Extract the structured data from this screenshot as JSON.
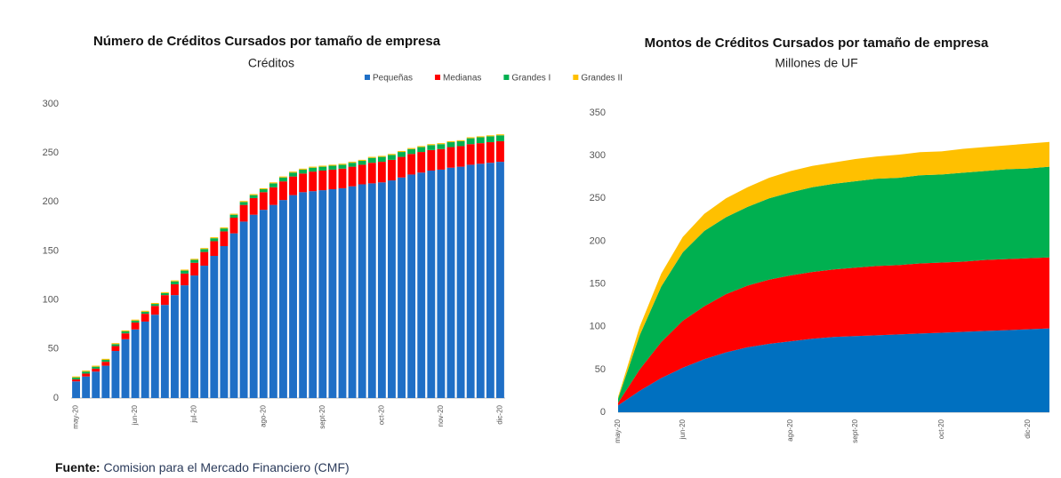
{
  "chart_data": [
    {
      "type": "bar",
      "title": "Número de Créditos Cursados por tamaño de empresa",
      "subtitle": "Créditos",
      "categories": [
        "may-20",
        null,
        null,
        null,
        null,
        null,
        "jun-20",
        null,
        null,
        null,
        null,
        null,
        "jul-20",
        null,
        null,
        null,
        null,
        null,
        null,
        "ago-20",
        null,
        null,
        null,
        null,
        null,
        "sept-20",
        null,
        null,
        null,
        null,
        null,
        "oct-20",
        null,
        null,
        null,
        null,
        null,
        "nov-20",
        null,
        null,
        null,
        null,
        null,
        "dic-20"
      ],
      "series": [
        {
          "name": "Pequeñas",
          "color": "#1f6fc6",
          "values": [
            17,
            22,
            27,
            33,
            48,
            60,
            70,
            78,
            85,
            95,
            105,
            115,
            125,
            135,
            145,
            155,
            168,
            180,
            187,
            192,
            197,
            202,
            207,
            210,
            211,
            212,
            213,
            214,
            216,
            218,
            219,
            220,
            222,
            225,
            228,
            230,
            232,
            233,
            235,
            236,
            238,
            239,
            240,
            241
          ]
        },
        {
          "name": "Medianas",
          "color": "#ff0000",
          "values": [
            2,
            3,
            3,
            4,
            5,
            6,
            7,
            8,
            9,
            10,
            11,
            12,
            13,
            14,
            15,
            15,
            16,
            17,
            17,
            18,
            18,
            19,
            19,
            19,
            20,
            20,
            20,
            20,
            20,
            20,
            21,
            21,
            21,
            21,
            21,
            21,
            21,
            21,
            21,
            21,
            21,
            21,
            21,
            21
          ]
        },
        {
          "name": "Grandes I",
          "color": "#00b050",
          "values": [
            2,
            2,
            2,
            2,
            2,
            2,
            2,
            2,
            2,
            2,
            3,
            3,
            3,
            3,
            3,
            3,
            3,
            3,
            3,
            3,
            4,
            4,
            4,
            4,
            4,
            4,
            4,
            4,
            4,
            4,
            5,
            5,
            5,
            5,
            5,
            5,
            5,
            5,
            5,
            5,
            6,
            6,
            6,
            6
          ]
        },
        {
          "name": "Grandes II",
          "color": "#ffc000",
          "values": [
            1,
            1,
            1,
            1,
            1,
            1,
            1,
            1,
            1,
            1,
            1,
            1,
            1,
            1,
            1,
            1,
            1,
            1,
            1,
            1,
            1,
            1,
            1,
            1,
            1,
            1,
            1,
            1,
            1,
            1,
            1,
            1,
            1,
            1,
            1,
            1,
            1,
            1,
            1,
            1,
            1,
            1,
            1,
            1
          ]
        }
      ],
      "ylim": [
        0,
        300
      ],
      "yticks": [
        0,
        50,
        100,
        150,
        200,
        250,
        300
      ],
      "stacked": true
    },
    {
      "type": "area",
      "title": "Montos de Créditos Cursados por tamaño de empresa",
      "subtitle": "Millones de UF",
      "categories": [
        "may-20",
        null,
        null,
        "jun-20",
        null,
        null,
        null,
        null,
        "ago-20",
        null,
        null,
        "sept-20",
        null,
        null,
        null,
        "oct-20",
        null,
        null,
        null,
        "dic-20",
        null
      ],
      "series": [
        {
          "color": "#0070c0",
          "values": [
            8,
            25,
            40,
            52,
            62,
            70,
            76,
            80,
            83,
            86,
            88,
            89,
            90,
            91,
            92,
            93,
            94,
            95,
            96,
            97,
            98
          ]
        },
        {
          "color": "#ff0000",
          "values": [
            3,
            25,
            42,
            55,
            62,
            68,
            72,
            75,
            77,
            78,
            79,
            80,
            81,
            81,
            82,
            82,
            82,
            83,
            83,
            83,
            83
          ]
        },
        {
          "color": "#00b050",
          "values": [
            5,
            40,
            65,
            80,
            88,
            90,
            92,
            95,
            97,
            99,
            100,
            101,
            102,
            102,
            103,
            103,
            104,
            104,
            105,
            105,
            106
          ]
        },
        {
          "color": "#ffc000",
          "values": [
            2,
            10,
            15,
            18,
            20,
            22,
            23,
            24,
            25,
            25,
            25,
            26,
            26,
            27,
            27,
            27,
            28,
            28,
            28,
            29,
            29
          ]
        }
      ],
      "ylim": [
        0,
        350
      ],
      "yticks": [
        0,
        50,
        100,
        150,
        200,
        250,
        300,
        350
      ],
      "stacked": true
    }
  ],
  "source": {
    "label": "Fuente:",
    "text": "Comision para el Mercado Financiero (CMF)"
  }
}
